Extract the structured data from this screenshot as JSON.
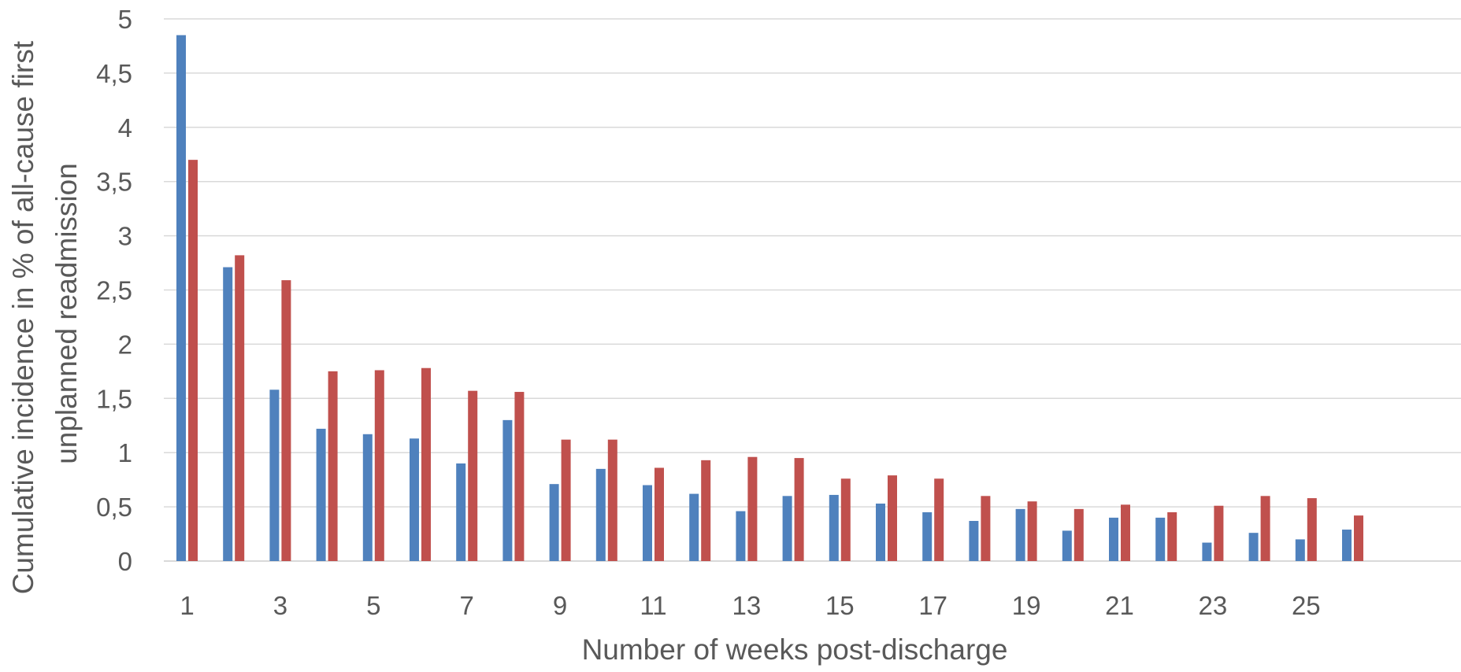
{
  "chart_data": {
    "type": "bar",
    "title": "",
    "xlabel": "Number of weeks post-discharge",
    "ylabel_lines": [
      "Cumulative incidence in % of all-cause first",
      "unplanned readmission"
    ],
    "ylim": [
      0,
      5
    ],
    "yticks": [
      0,
      0.5,
      1,
      1.5,
      2,
      2.5,
      3,
      3.5,
      4,
      4.5,
      5
    ],
    "ytick_labels": [
      "0",
      "0,5",
      "1",
      "1,5",
      "2",
      "2,5",
      "3",
      "3,5",
      "4",
      "4,5",
      "5"
    ],
    "categories": [
      1,
      2,
      3,
      4,
      5,
      6,
      7,
      8,
      9,
      10,
      11,
      12,
      13,
      14,
      15,
      16,
      17,
      18,
      19,
      20,
      21,
      22,
      23,
      24,
      25,
      26
    ],
    "xtick_labels": [
      "1",
      "3",
      "5",
      "7",
      "9",
      "11",
      "13",
      "15",
      "17",
      "19",
      "21",
      "23",
      "25"
    ],
    "grid": true,
    "legend": "none",
    "series": [
      {
        "color": "#4F81BD",
        "values": [
          4.85,
          2.71,
          1.58,
          1.22,
          1.17,
          1.13,
          0.9,
          1.3,
          0.71,
          0.85,
          0.7,
          0.62,
          0.46,
          0.6,
          0.61,
          0.53,
          0.45,
          0.37,
          0.48,
          0.28,
          0.4,
          0.4,
          0.17,
          0.26,
          0.2,
          0.29
        ]
      },
      {
        "color": "#C0504D",
        "values": [
          3.7,
          2.82,
          2.59,
          1.75,
          1.76,
          1.78,
          1.57,
          1.56,
          1.12,
          1.12,
          0.86,
          0.93,
          0.96,
          0.95,
          0.76,
          0.79,
          0.76,
          0.6,
          0.55,
          0.48,
          0.52,
          0.45,
          0.51,
          0.6,
          0.58,
          0.42
        ]
      }
    ],
    "gridline_color": "#D9D9D9",
    "text_color": "#595959"
  }
}
